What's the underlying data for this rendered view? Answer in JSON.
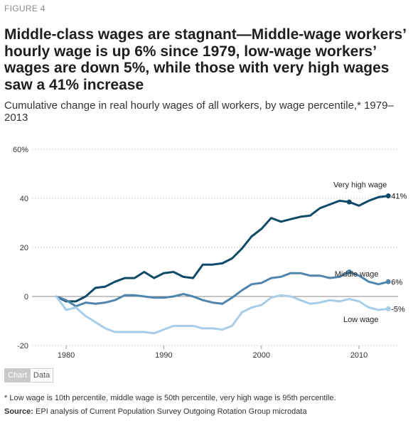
{
  "figure_label": "FIGURE 4",
  "title": "Middle-class wages are stagnant—Middle-wage workers’ hourly wage is up 6% since 1979, low-wage workers’ wages are down 5%, while those with very high wages saw a 41% increase",
  "subtitle": "Cumulative change in real hourly wages of all workers, by wage percentile,* 1979–2013",
  "tabs": {
    "chart": "Chart",
    "data": "Data"
  },
  "footnote": "* Low wage is 10th percentile, middle wage is 50th percentile, very high wage is 95th percentile.",
  "source": {
    "label": "Source:",
    "text": " EPI analysis of Current Population Survey Outgoing Rotation Group microdata"
  },
  "colors": {
    "very_high": "#0e4a68",
    "middle": "#4f86ad",
    "low": "#a8cde9",
    "zero_line": "#888888",
    "grid": "#c8c8c8"
  },
  "chart_data": {
    "type": "line",
    "title": "",
    "xlabel": "",
    "ylabel": "",
    "xlim": [
      1976.5,
      2014
    ],
    "ylim": [
      -20,
      60
    ],
    "x_ticks": [
      1980,
      1990,
      2000,
      2010
    ],
    "y_ticks": [
      -20,
      0,
      20,
      40,
      60
    ],
    "y_tick_labels": [
      "-20",
      "0",
      "20",
      "40",
      "60%"
    ],
    "grid": "horizontal-dotted",
    "x": [
      1979,
      1980,
      1981,
      1982,
      1983,
      1984,
      1985,
      1986,
      1987,
      1988,
      1989,
      1990,
      1991,
      1992,
      1993,
      1994,
      1995,
      1996,
      1997,
      1998,
      1999,
      2000,
      2001,
      2002,
      2003,
      2004,
      2005,
      2006,
      2007,
      2008,
      2009,
      2010,
      2011,
      2012,
      2013
    ],
    "series": [
      {
        "name": "Very high wage",
        "end_label": "41%",
        "color": "#0e4a68",
        "values": [
          0,
          -2,
          -2,
          0,
          3.5,
          4,
          6,
          7.5,
          7.5,
          10,
          7.5,
          9.5,
          10,
          8,
          7.5,
          13,
          13,
          13.5,
          15.5,
          19.5,
          24.5,
          27.5,
          32,
          30.5,
          31.5,
          32.5,
          33,
          36,
          37.5,
          39,
          38.5,
          37,
          39,
          40.5,
          41
        ]
      },
      {
        "name": "Middle wage",
        "end_label": "6%",
        "color": "#4f86ad",
        "values": [
          0,
          -1.5,
          -4,
          -2.5,
          -3,
          -2.5,
          -1.5,
          0.5,
          0.5,
          0,
          -0.5,
          -0.5,
          0,
          1,
          0,
          -1.5,
          -2.5,
          -3,
          -0.5,
          2.5,
          5,
          5.5,
          7.5,
          8,
          9.5,
          9.5,
          8.5,
          8.5,
          7.5,
          8,
          10,
          8.5,
          6,
          5,
          6
        ]
      },
      {
        "name": "Low wage",
        "end_label": "-5%",
        "color": "#a8cde9",
        "values": [
          0,
          -5.5,
          -4.5,
          -8,
          -10.5,
          -13,
          -14.5,
          -14.5,
          -14.5,
          -14.5,
          -15,
          -13.5,
          -12,
          -12,
          -12,
          -13,
          -13,
          -13.5,
          -12,
          -6.5,
          -4.5,
          -3.5,
          -0.5,
          0.5,
          0,
          -1.5,
          -3,
          -2.5,
          -1.5,
          -2,
          -1,
          -2,
          -4.5,
          -5.5,
          -5
        ]
      }
    ]
  }
}
